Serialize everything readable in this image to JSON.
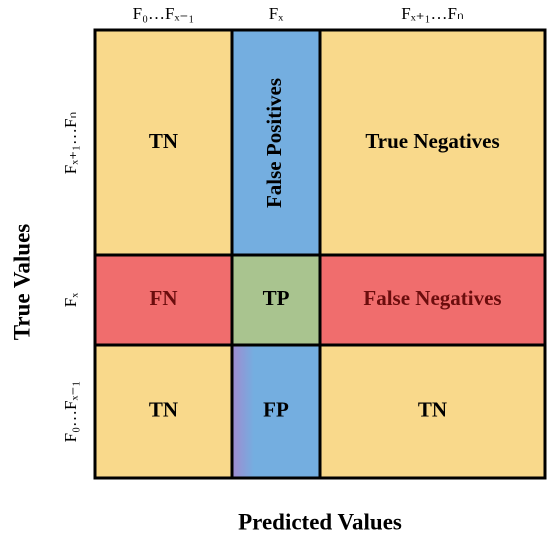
{
  "column_headers": [
    "F₀…Fₓ₋₁",
    "Fₓ",
    "Fₓ₊₁…Fₙ"
  ],
  "row_headers": [
    "Fₓ₊₁…Fₙ",
    "Fₓ",
    "F₀…Fₓ₋₁"
  ],
  "y_axis_label": "True Values",
  "x_axis_label": "Predicted Values",
  "cells": [
    [
      "TN",
      "False Positives",
      "True Negatives"
    ],
    [
      "FN",
      "TP",
      "False Negatives"
    ],
    [
      "TN",
      "FP",
      "TN"
    ]
  ]
}
